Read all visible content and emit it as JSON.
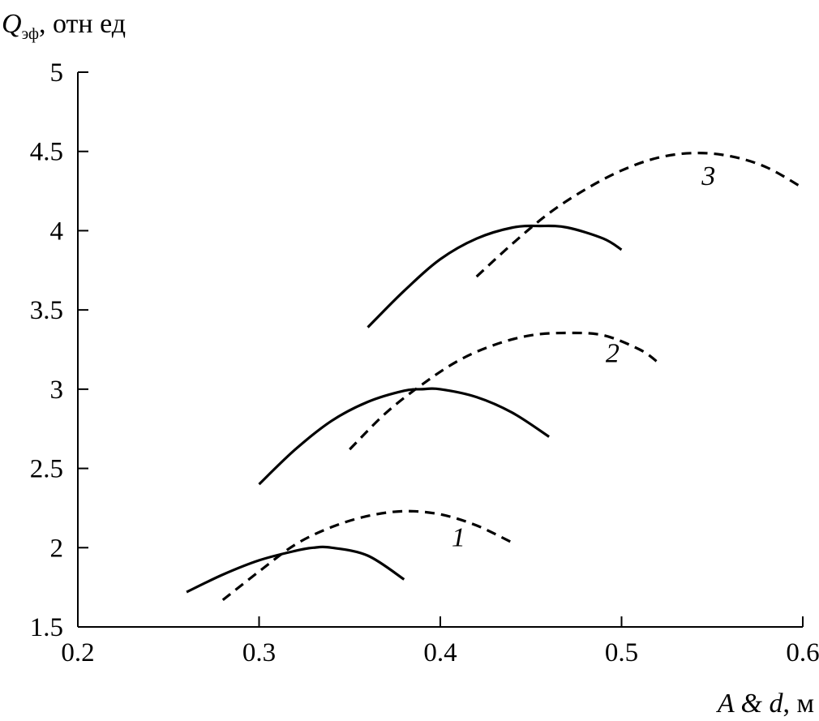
{
  "chart_data": {
    "type": "line",
    "title": "",
    "ylabel": {
      "symbol": "Q",
      "subscript": "эф",
      "rest": ", отн ед"
    },
    "xlabel": {
      "symbol_a": "A",
      "amp": " & ",
      "symbol_d": "d",
      "rest": ", м"
    },
    "xlim": [
      0.2,
      0.6
    ],
    "ylim": [
      1.5,
      5
    ],
    "xticks": [
      {
        "value": 0.2,
        "label": "0.2"
      },
      {
        "value": 0.3,
        "label": "0.3"
      },
      {
        "value": 0.4,
        "label": "0.4"
      },
      {
        "value": 0.5,
        "label": "0.5"
      },
      {
        "value": 0.6,
        "label": "0.6"
      }
    ],
    "yticks": [
      {
        "value": 1.5,
        "label": "1.5"
      },
      {
        "value": 2,
        "label": "2"
      },
      {
        "value": 2.5,
        "label": "2.5"
      },
      {
        "value": 3,
        "label": "3"
      },
      {
        "value": 3.5,
        "label": "3.5"
      },
      {
        "value": 4,
        "label": "4"
      },
      {
        "value": 4.5,
        "label": "4.5"
      },
      {
        "value": 5,
        "label": "5"
      }
    ],
    "grid": false,
    "series": [
      {
        "group": "1",
        "style": "solid",
        "x": [
          0.26,
          0.28,
          0.3,
          0.32,
          0.33,
          0.34,
          0.36,
          0.38
        ],
        "y": [
          1.72,
          1.83,
          1.92,
          1.98,
          2.0,
          2.0,
          1.95,
          1.8
        ]
      },
      {
        "group": "1",
        "style": "dashed",
        "x": [
          0.28,
          0.3,
          0.32,
          0.34,
          0.36,
          0.38,
          0.4,
          0.42,
          0.44
        ],
        "y": [
          1.67,
          1.85,
          2.02,
          2.13,
          2.2,
          2.23,
          2.21,
          2.14,
          2.03
        ]
      },
      {
        "group": "2",
        "style": "solid",
        "x": [
          0.3,
          0.32,
          0.34,
          0.36,
          0.38,
          0.39,
          0.4,
          0.42,
          0.44,
          0.46
        ],
        "y": [
          2.4,
          2.62,
          2.8,
          2.92,
          2.99,
          3.0,
          3.0,
          2.95,
          2.85,
          2.7
        ]
      },
      {
        "group": "2",
        "style": "dashed",
        "x": [
          0.35,
          0.37,
          0.39,
          0.41,
          0.43,
          0.45,
          0.47,
          0.49,
          0.51,
          0.52
        ],
        "y": [
          2.62,
          2.85,
          3.03,
          3.18,
          3.28,
          3.34,
          3.355,
          3.34,
          3.25,
          3.17
        ]
      },
      {
        "group": "3",
        "style": "solid",
        "x": [
          0.36,
          0.38,
          0.4,
          0.42,
          0.44,
          0.455,
          0.47,
          0.49,
          0.5
        ],
        "y": [
          3.39,
          3.62,
          3.82,
          3.95,
          4.02,
          4.03,
          4.02,
          3.95,
          3.88
        ]
      },
      {
        "group": "3",
        "style": "dashed",
        "x": [
          0.42,
          0.44,
          0.46,
          0.48,
          0.5,
          0.52,
          0.54,
          0.56,
          0.58,
          0.6
        ],
        "y": [
          3.71,
          3.92,
          4.11,
          4.26,
          4.38,
          4.46,
          4.49,
          4.47,
          4.4,
          4.27
        ]
      }
    ],
    "annotations": [
      {
        "text": "1",
        "x": 0.41,
        "y": 2.01
      },
      {
        "text": "2",
        "x": 0.495,
        "y": 3.17
      },
      {
        "text": "3",
        "x": 0.548,
        "y": 4.29
      }
    ]
  }
}
